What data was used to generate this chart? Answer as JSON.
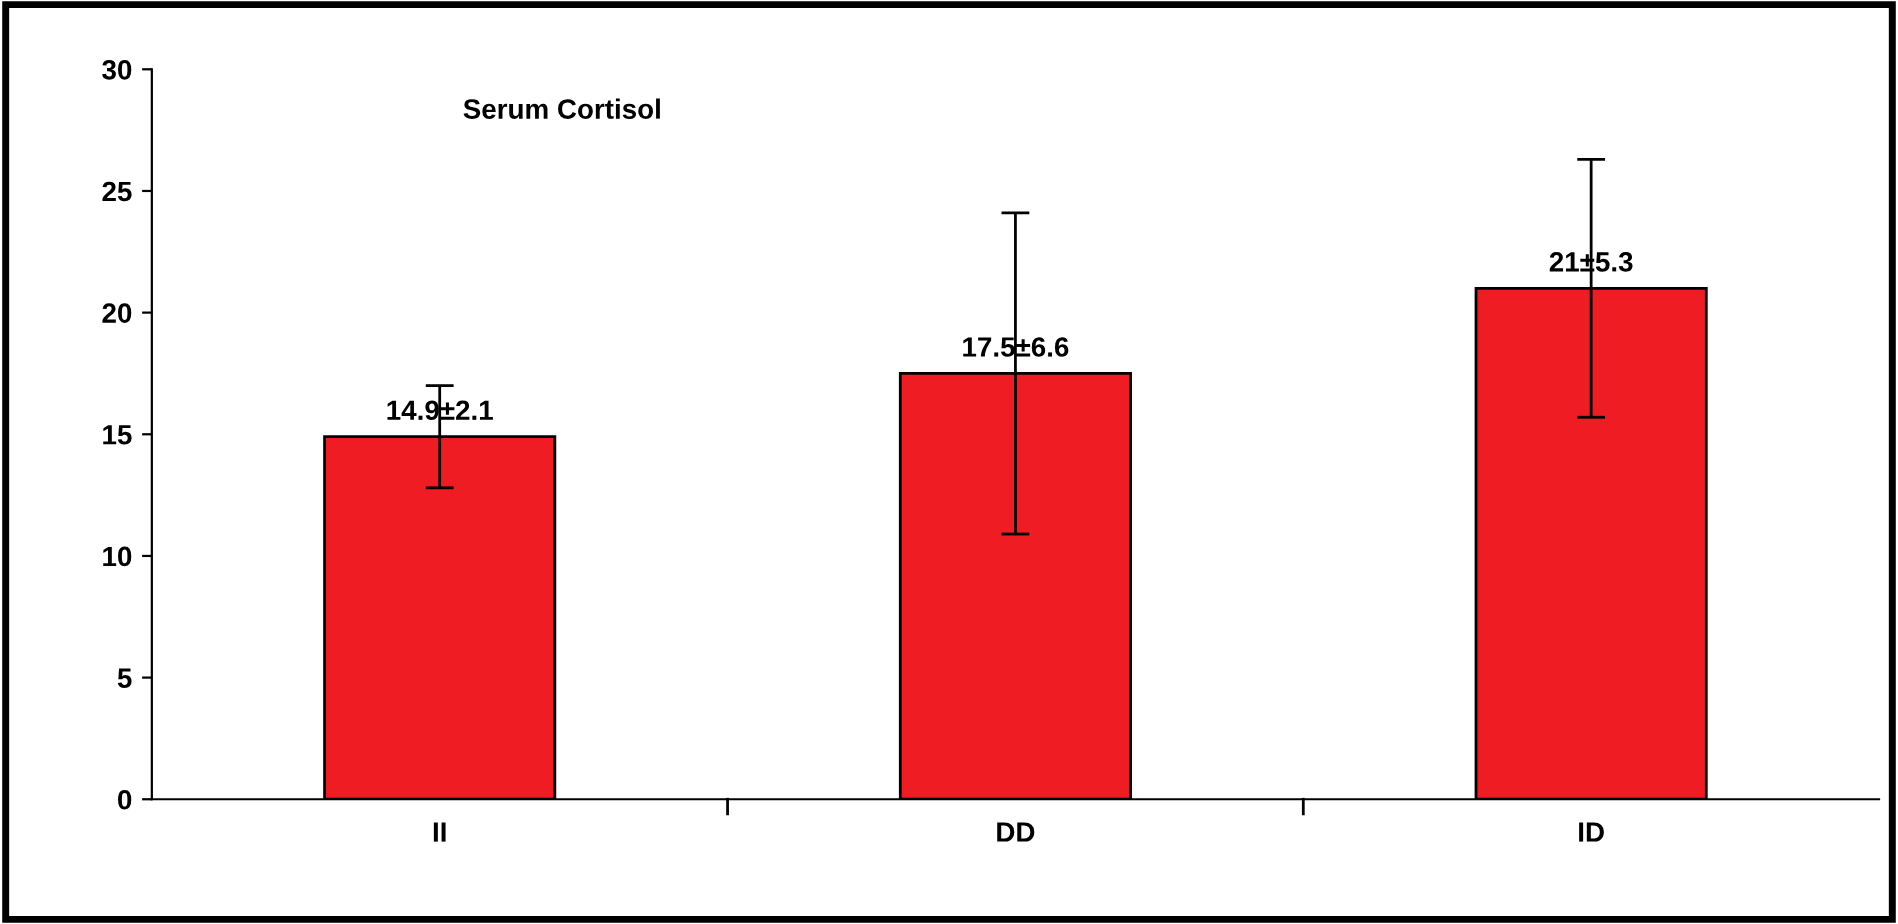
{
  "chart_data": {
    "type": "bar",
    "title": "Serum Cortisol",
    "categories": [
      "II",
      "DD",
      "ID"
    ],
    "values": [
      14.9,
      17.5,
      21
    ],
    "errors": [
      2.1,
      6.6,
      5.3
    ],
    "value_labels": [
      "14.9±2.1",
      "17.5±6.6",
      "21±5.3"
    ],
    "color": "#f01c24",
    "ylim": [
      0,
      30
    ],
    "yticks": [
      0,
      5,
      10,
      15,
      20,
      25,
      30
    ],
    "grid": false,
    "legend": false
  }
}
